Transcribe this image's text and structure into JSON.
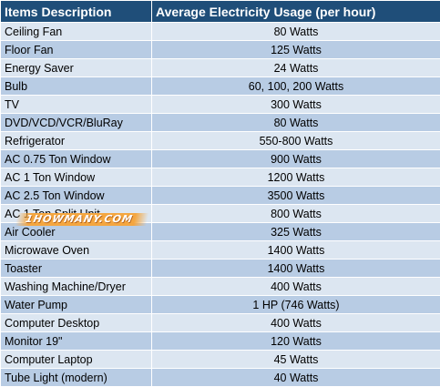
{
  "header": {
    "col1": "Items Description",
    "col2": "Average Electricity Usage (per hour)"
  },
  "rows": [
    {
      "item": "Ceiling Fan",
      "usage": "80 Watts"
    },
    {
      "item": "Floor Fan",
      "usage": "125 Watts"
    },
    {
      "item": "Energy Saver",
      "usage": "24 Watts"
    },
    {
      "item": "Bulb",
      "usage": "60, 100, 200 Watts"
    },
    {
      "item": "TV",
      "usage": "300 Watts"
    },
    {
      "item": "DVD/VCD/VCR/BluRay",
      "usage": "80 Watts"
    },
    {
      "item": "Refrigerator",
      "usage": "550-800 Watts"
    },
    {
      "item": "AC 0.75 Ton Window",
      "usage": "900 Watts"
    },
    {
      "item": "AC 1 Ton Window",
      "usage": "1200 Watts"
    },
    {
      "item": "AC 2.5 Ton Window",
      "usage": "3500 Watts"
    },
    {
      "item": "AC 1 Ton Split Unit",
      "usage": "800 Watts"
    },
    {
      "item": "Air Cooler",
      "usage": "325 Watts"
    },
    {
      "item": "Microwave Oven",
      "usage": "1400 Watts"
    },
    {
      "item": "Toaster",
      "usage": "1400 Watts"
    },
    {
      "item": "Washing Machine/Dryer",
      "usage": "400 Watts"
    },
    {
      "item": "Water Pump",
      "usage": "1 HP (746 Watts)"
    },
    {
      "item": "Computer Desktop",
      "usage": "400 Watts"
    },
    {
      "item": "Monitor 19\"",
      "usage": "120 Watts"
    },
    {
      "item": "Computer Laptop",
      "usage": "45 Watts"
    },
    {
      "item": "Tube Light (modern)",
      "usage": "40 Watts"
    }
  ],
  "watermark": "1HOWMANY.COM"
}
